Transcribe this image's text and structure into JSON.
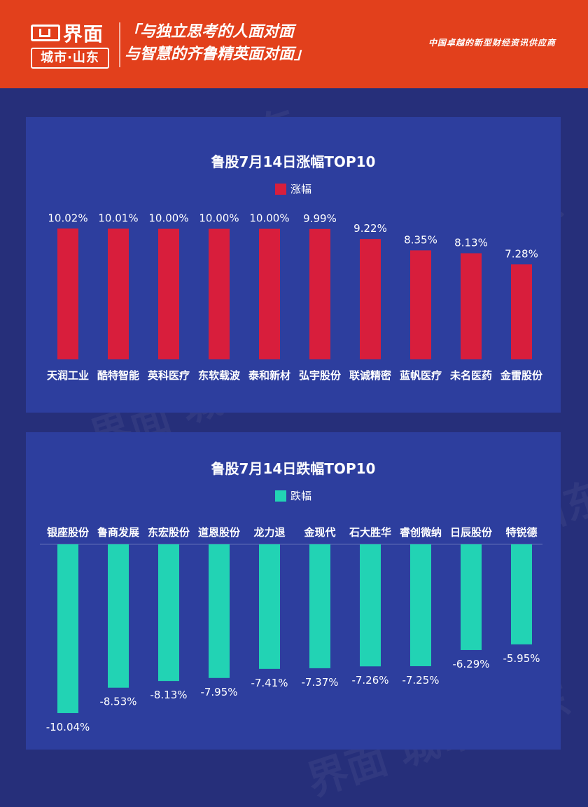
{
  "header": {
    "logo_name": "界面",
    "logo_sub": "城市·山东",
    "slogan_line1": "「与独立思考的人面对面",
    "slogan_line2": "与智慧的齐鲁精英面对面」",
    "tagline": "中国卓越的新型财经资讯供应商",
    "bg_color": "#e2401c"
  },
  "watermark": "界面 城市·山东",
  "chart_data": [
    {
      "type": "bar",
      "title": "鲁股7月14日涨幅TOP10",
      "series": [
        {
          "name": "涨幅",
          "color": "#d81e3c",
          "values": [
            10.02,
            10.01,
            10.0,
            10.0,
            10.0,
            9.99,
            9.22,
            8.35,
            8.13,
            7.28
          ],
          "labels": [
            "10.02%",
            "10.01%",
            "10.00%",
            "10.00%",
            "10.00%",
            "9.99%",
            "9.22%",
            "8.35%",
            "8.13%",
            "7.28%"
          ]
        }
      ],
      "categories": [
        "天润工业",
        "酷特智能",
        "英科医疗",
        "东软载波",
        "泰和新材",
        "弘宇股份",
        "联诚精密",
        "蓝帆医疗",
        "未名医药",
        "金雷股份"
      ],
      "ylim": [
        0,
        11
      ],
      "legend": "top-center",
      "grid": false
    },
    {
      "type": "bar",
      "title": "鲁股7月14日跌幅TOP10",
      "series": [
        {
          "name": "跌幅",
          "color": "#22d3b4",
          "values": [
            -10.04,
            -8.53,
            -8.13,
            -7.95,
            -7.41,
            -7.37,
            -7.26,
            -7.25,
            -6.29,
            -5.95
          ],
          "labels": [
            "-10.04%",
            "-8.53%",
            "-8.13%",
            "-7.95%",
            "-7.41%",
            "-7.37%",
            "-7.26%",
            "-7.25%",
            "-6.29%",
            "-5.95%"
          ]
        }
      ],
      "categories": [
        "银座股份",
        "鲁商发展",
        "东宏股份",
        "道恩股份",
        "龙力退",
        "金现代",
        "石大胜华",
        "睿创微纳",
        "日辰股份",
        "特锐德"
      ],
      "ylim": [
        -10.5,
        0
      ],
      "legend": "top-center",
      "grid": false
    }
  ]
}
